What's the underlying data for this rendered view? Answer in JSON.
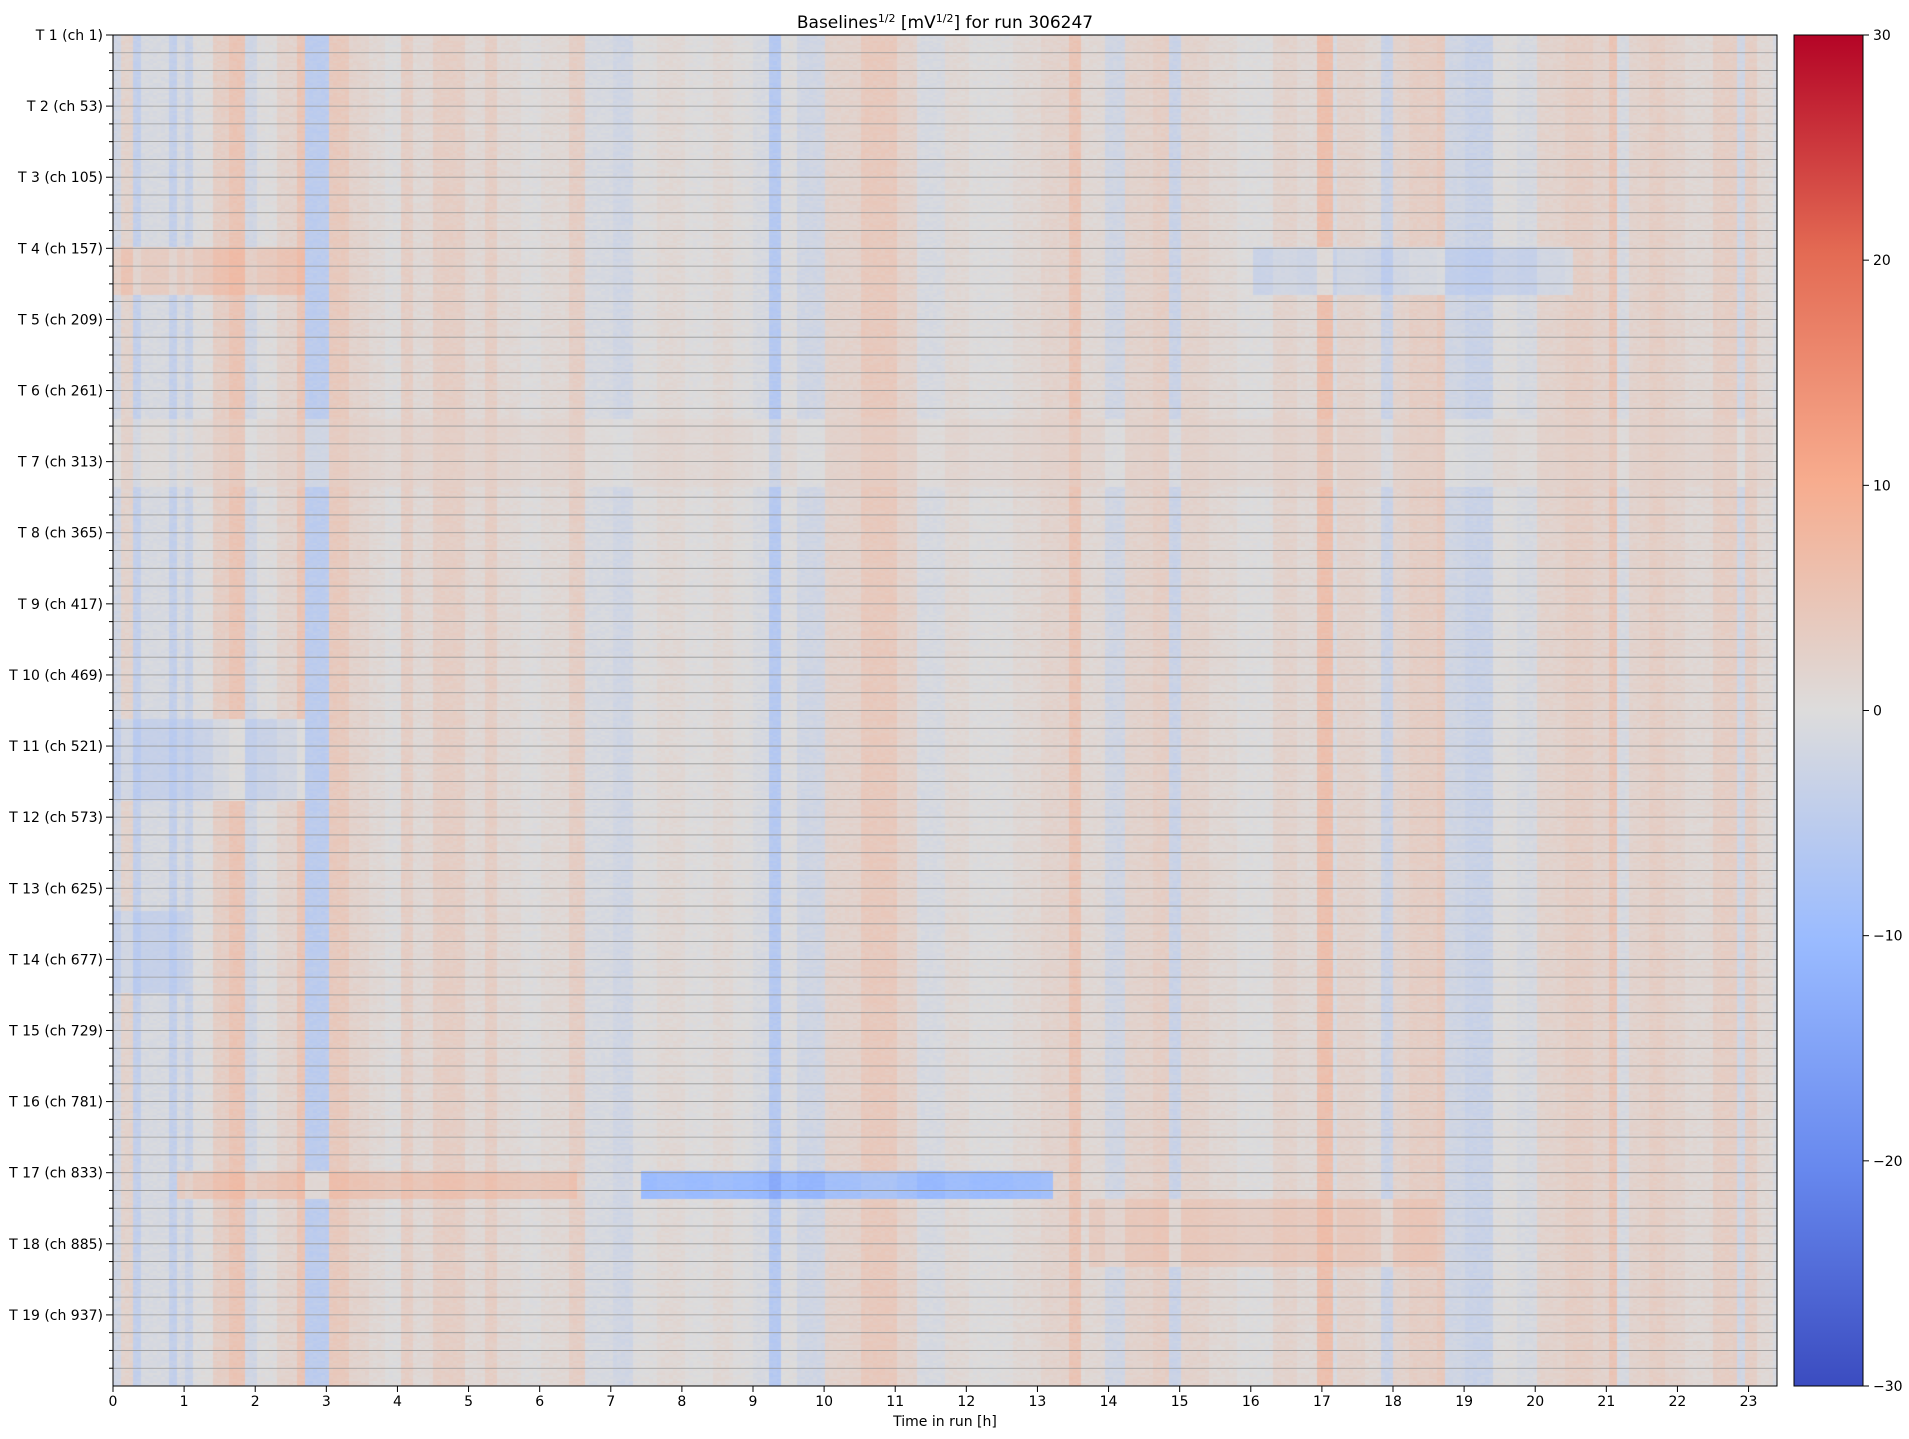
{
  "chart_data": {
    "type": "heatmap",
    "title": "Baselines",
    "title_sup1": "1/2",
    "title_unit_open": " [mV",
    "title_sup2": "1/2",
    "title_rest": "] for run 306247",
    "xlabel": "Time in run [h]",
    "xlim": [
      0,
      23.4
    ],
    "xticks": [
      "0",
      "1",
      "2",
      "3",
      "4",
      "5",
      "6",
      "7",
      "8",
      "9",
      "10",
      "11",
      "12",
      "13",
      "14",
      "15",
      "16",
      "17",
      "18",
      "19",
      "20",
      "21",
      "22",
      "23"
    ],
    "yticks": [
      "T 1 (ch 1)",
      "T 2 (ch 53)",
      "T 3 (ch 105)",
      "T 4 (ch 157)",
      "T 5 (ch 209)",
      "T 6 (ch 261)",
      "T 7 (ch 313)",
      "T 8 (ch 365)",
      "T 9 (ch 417)",
      "T 10 (ch 469)",
      "T 11 (ch 521)",
      "T 12 (ch 573)",
      "T 13 (ch 625)",
      "T 14 (ch 677)",
      "T 15 (ch 729)",
      "T 16 (ch 781)",
      "T 17 (ch 833)",
      "T 18 (ch 885)",
      "T 19 (ch 937)"
    ],
    "n_channels": 988,
    "colormap": "coolwarm",
    "vmin": -30,
    "vmax": 30,
    "colorbar_ticks": [
      "30",
      "20",
      "10",
      "0",
      "−10",
      "−20",
      "−30"
    ],
    "colorbar_values": [
      30,
      20,
      10,
      0,
      -10,
      -20,
      -30
    ],
    "colors": {
      "cold": "#3b4cc0",
      "mid": "#dddcdc",
      "warm": "#b40426",
      "grid": "#999999"
    },
    "column_pattern": [
      [
        0.0,
        -2
      ],
      [
        0.08,
        2
      ],
      [
        0.25,
        -4
      ],
      [
        0.35,
        -1
      ],
      [
        0.75,
        -4
      ],
      [
        0.85,
        -1
      ],
      [
        1.0,
        -3
      ],
      [
        1.1,
        0
      ],
      [
        1.4,
        3
      ],
      [
        1.6,
        5
      ],
      [
        1.85,
        -2
      ],
      [
        2.0,
        0
      ],
      [
        2.3,
        2
      ],
      [
        2.55,
        5
      ],
      [
        2.7,
        -5
      ],
      [
        3.0,
        4
      ],
      [
        3.3,
        2
      ],
      [
        3.6,
        1
      ],
      [
        3.8,
        0
      ],
      [
        4.0,
        3
      ],
      [
        4.2,
        1
      ],
      [
        4.5,
        3
      ],
      [
        4.9,
        1
      ],
      [
        5.2,
        3
      ],
      [
        5.4,
        1
      ],
      [
        5.7,
        0
      ],
      [
        6.0,
        1
      ],
      [
        6.4,
        3
      ],
      [
        6.6,
        -1
      ],
      [
        7.0,
        -2
      ],
      [
        7.3,
        0
      ],
      [
        7.6,
        1
      ],
      [
        8.0,
        0
      ],
      [
        8.4,
        1
      ],
      [
        8.7,
        0
      ],
      [
        9.0,
        -1
      ],
      [
        9.2,
        -6
      ],
      [
        9.35,
        0
      ],
      [
        9.6,
        -2
      ],
      [
        10.0,
        2
      ],
      [
        10.5,
        4
      ],
      [
        11.0,
        2
      ],
      [
        11.3,
        -1
      ],
      [
        11.7,
        1
      ],
      [
        12.0,
        0
      ],
      [
        12.6,
        1
      ],
      [
        13.0,
        2
      ],
      [
        13.4,
        5
      ],
      [
        13.6,
        1
      ],
      [
        13.9,
        -2
      ],
      [
        14.2,
        2
      ],
      [
        14.6,
        3
      ],
      [
        14.8,
        -3
      ],
      [
        15.0,
        2
      ],
      [
        15.4,
        1
      ],
      [
        15.8,
        0
      ],
      [
        16.3,
        2
      ],
      [
        16.6,
        1
      ],
      [
        16.9,
        6
      ],
      [
        17.1,
        -1
      ],
      [
        17.2,
        2
      ],
      [
        17.6,
        1
      ],
      [
        17.8,
        -3
      ],
      [
        17.95,
        2
      ],
      [
        18.2,
        3
      ],
      [
        18.6,
        4
      ],
      [
        18.7,
        -2
      ],
      [
        19.0,
        -3
      ],
      [
        19.4,
        0
      ],
      [
        19.7,
        -1
      ],
      [
        20.0,
        2
      ],
      [
        20.4,
        3
      ],
      [
        20.8,
        2
      ],
      [
        21.0,
        5
      ],
      [
        21.1,
        -1
      ],
      [
        21.3,
        2
      ],
      [
        21.6,
        3
      ],
      [
        21.8,
        2
      ],
      [
        22.1,
        1
      ],
      [
        22.5,
        3
      ],
      [
        22.8,
        -2
      ],
      [
        22.9,
        3
      ],
      [
        23.1,
        1
      ],
      [
        23.3,
        -1
      ]
    ],
    "row_bands": [
      [
        155,
        190,
        -1,
        0.0,
        2.7,
        4
      ],
      [
        155,
        190,
        -1,
        16.0,
        20.5,
        -3
      ],
      [
        280,
        330,
        0,
        0,
        23.4,
        1
      ],
      [
        830,
        850,
        0,
        0.9,
        6.5,
        4
      ],
      [
        830,
        850,
        0,
        7.4,
        13.2,
        -10
      ],
      [
        850,
        900,
        0,
        13.7,
        18.6,
        3
      ],
      [
        500,
        560,
        0,
        0,
        2.7,
        -3
      ],
      [
        640,
        700,
        0,
        0,
        1.0,
        -3
      ]
    ]
  }
}
